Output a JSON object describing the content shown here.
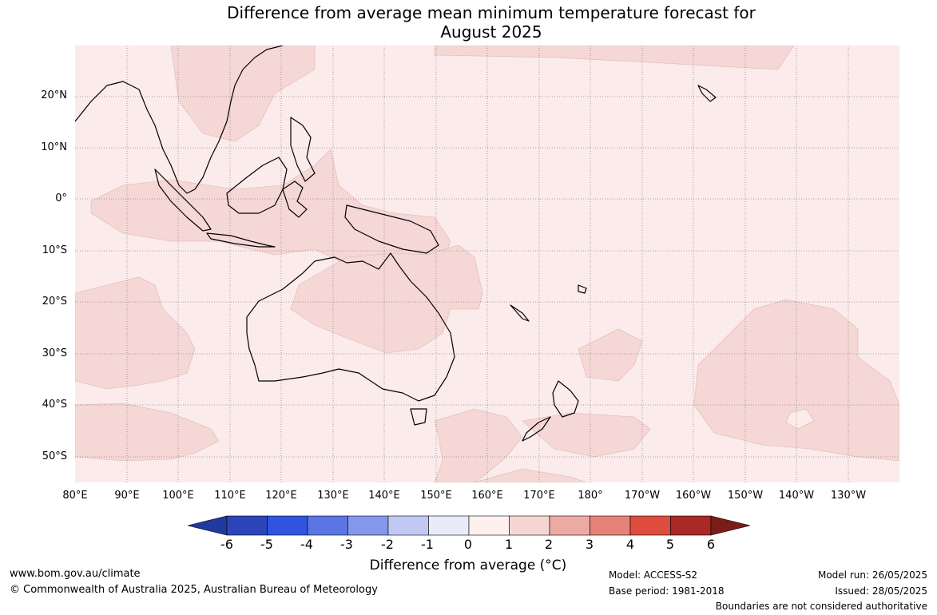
{
  "title": {
    "line1": "Difference from average mean minimum temperature forecast for",
    "line2": "August 2025"
  },
  "map": {
    "lat_labels": [
      "20°N",
      "10°N",
      "0°",
      "10°S",
      "20°S",
      "30°S",
      "40°S",
      "50°S"
    ],
    "lon_labels": [
      "80°E",
      "90°E",
      "100°E",
      "110°E",
      "120°E",
      "130°E",
      "140°E",
      "150°E",
      "160°E",
      "170°E",
      "180°",
      "170°W",
      "160°W",
      "150°W",
      "140°W",
      "130°W"
    ],
    "background_color": "#fbebea",
    "anomaly_fill_color": "#f5d7d5",
    "coastline_color": "#000000"
  },
  "colorbar": {
    "labels": [
      "-6",
      "-5",
      "-4",
      "-3",
      "-2",
      "-1",
      "0",
      "1",
      "2",
      "3",
      "4",
      "5",
      "6"
    ],
    "colors": [
      "#22399e",
      "#2c45b9",
      "#2f55de",
      "#5b75e5",
      "#8597ea",
      "#c0c8f3",
      "#e9ebfb",
      "#fdf0ee",
      "#f6d6d4",
      "#eda9a3",
      "#e58378",
      "#dd4c3e",
      "#a82925",
      "#7b1c19"
    ],
    "title": "Difference from average (°C)"
  },
  "footer": {
    "website": "www.bom.gov.au/climate",
    "copyright": "© Commonwealth of Australia 2025, Australian Bureau of Meteorology",
    "model": "Model: ACCESS-S2",
    "base_period": "Base period: 1981-2018",
    "model_run": "Model run: 26/05/2025",
    "issued": "Issued: 28/05/2025",
    "disclaimer": "Boundaries are not considered authoritative"
  }
}
